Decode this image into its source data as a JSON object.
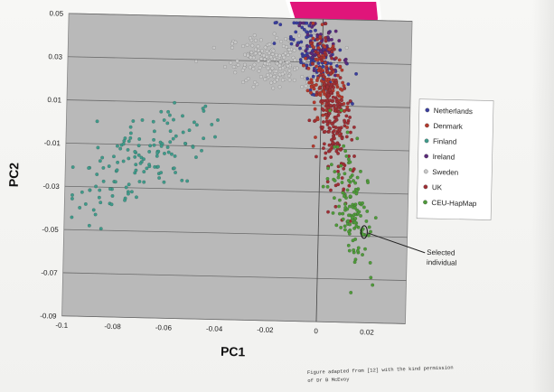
{
  "chart_data": {
    "type": "scatter",
    "title": "",
    "xlabel": "PC1",
    "ylabel": "PC2",
    "xlim": [
      -0.1,
      0.035
    ],
    "ylim": [
      -0.09,
      0.05
    ],
    "x_ticks": [
      "-0.1",
      "-0.08",
      "-0.06",
      "-0.04",
      "-0.02",
      "0",
      "0.02"
    ],
    "x_tick_values": [
      -0.1,
      -0.08,
      -0.06,
      -0.04,
      -0.02,
      0,
      0.02
    ],
    "y_ticks": [
      "0.05",
      "0.03",
      "0.01",
      "-0.01",
      "-0.03",
      "-0.05",
      "-0.07",
      "-0.09"
    ],
    "y_tick_values": [
      0.05,
      0.03,
      0.01,
      -0.01,
      -0.03,
      -0.05,
      -0.07,
      -0.09
    ],
    "grid": "horizontal",
    "legend_position": "right",
    "series": [
      {
        "name": "Netherlands",
        "color": "#3a3f9e",
        "cloud": {
          "cx": -0.004,
          "cy": 0.034,
          "sx": 0.006,
          "sy": 0.007,
          "n": 110,
          "tilt": -0.9
        }
      },
      {
        "name": "Denmark",
        "color": "#b33a2e",
        "cloud": {
          "cx": 0.002,
          "cy": 0.018,
          "sx": 0.004,
          "sy": 0.01,
          "n": 140,
          "tilt": -0.7
        }
      },
      {
        "name": "Finland",
        "color": "#3f9a8a",
        "cloud": {
          "cx": -0.072,
          "cy": -0.018,
          "sx": 0.013,
          "sy": 0.01,
          "n": 140,
          "tilt": 0.55
        }
      },
      {
        "name": "Ireland",
        "color": "#5b2a7a",
        "cloud": {
          "cx": -0.001,
          "cy": 0.038,
          "sx": 0.004,
          "sy": 0.006,
          "n": 70,
          "tilt": -0.8
        }
      },
      {
        "name": "Sweden",
        "color": "#c9c9c9",
        "cloud": {
          "cx": -0.017,
          "cy": 0.03,
          "sx": 0.01,
          "sy": 0.006,
          "n": 200,
          "tilt": 0
        }
      },
      {
        "name": "UK",
        "color": "#9e2f35",
        "cloud": {
          "cx": 0.005,
          "cy": 0.004,
          "sx": 0.004,
          "sy": 0.014,
          "n": 200,
          "tilt": -2.5
        }
      },
      {
        "name": "CEU-HapMap",
        "color": "#4f9a3a",
        "cloud": {
          "cx": 0.013,
          "cy": -0.035,
          "sx": 0.0045,
          "sy": 0.012,
          "n": 130,
          "tilt": -1.8
        }
      }
    ],
    "annotation": {
      "text": [
        "Selected",
        "individual"
      ],
      "x": 0.018,
      "y": -0.048
    }
  },
  "footnote": [
    "Figure adapted from [12] with the kind permission",
    "of Dr B McEvoy"
  ],
  "logo": {
    "color": "#e0157a"
  }
}
